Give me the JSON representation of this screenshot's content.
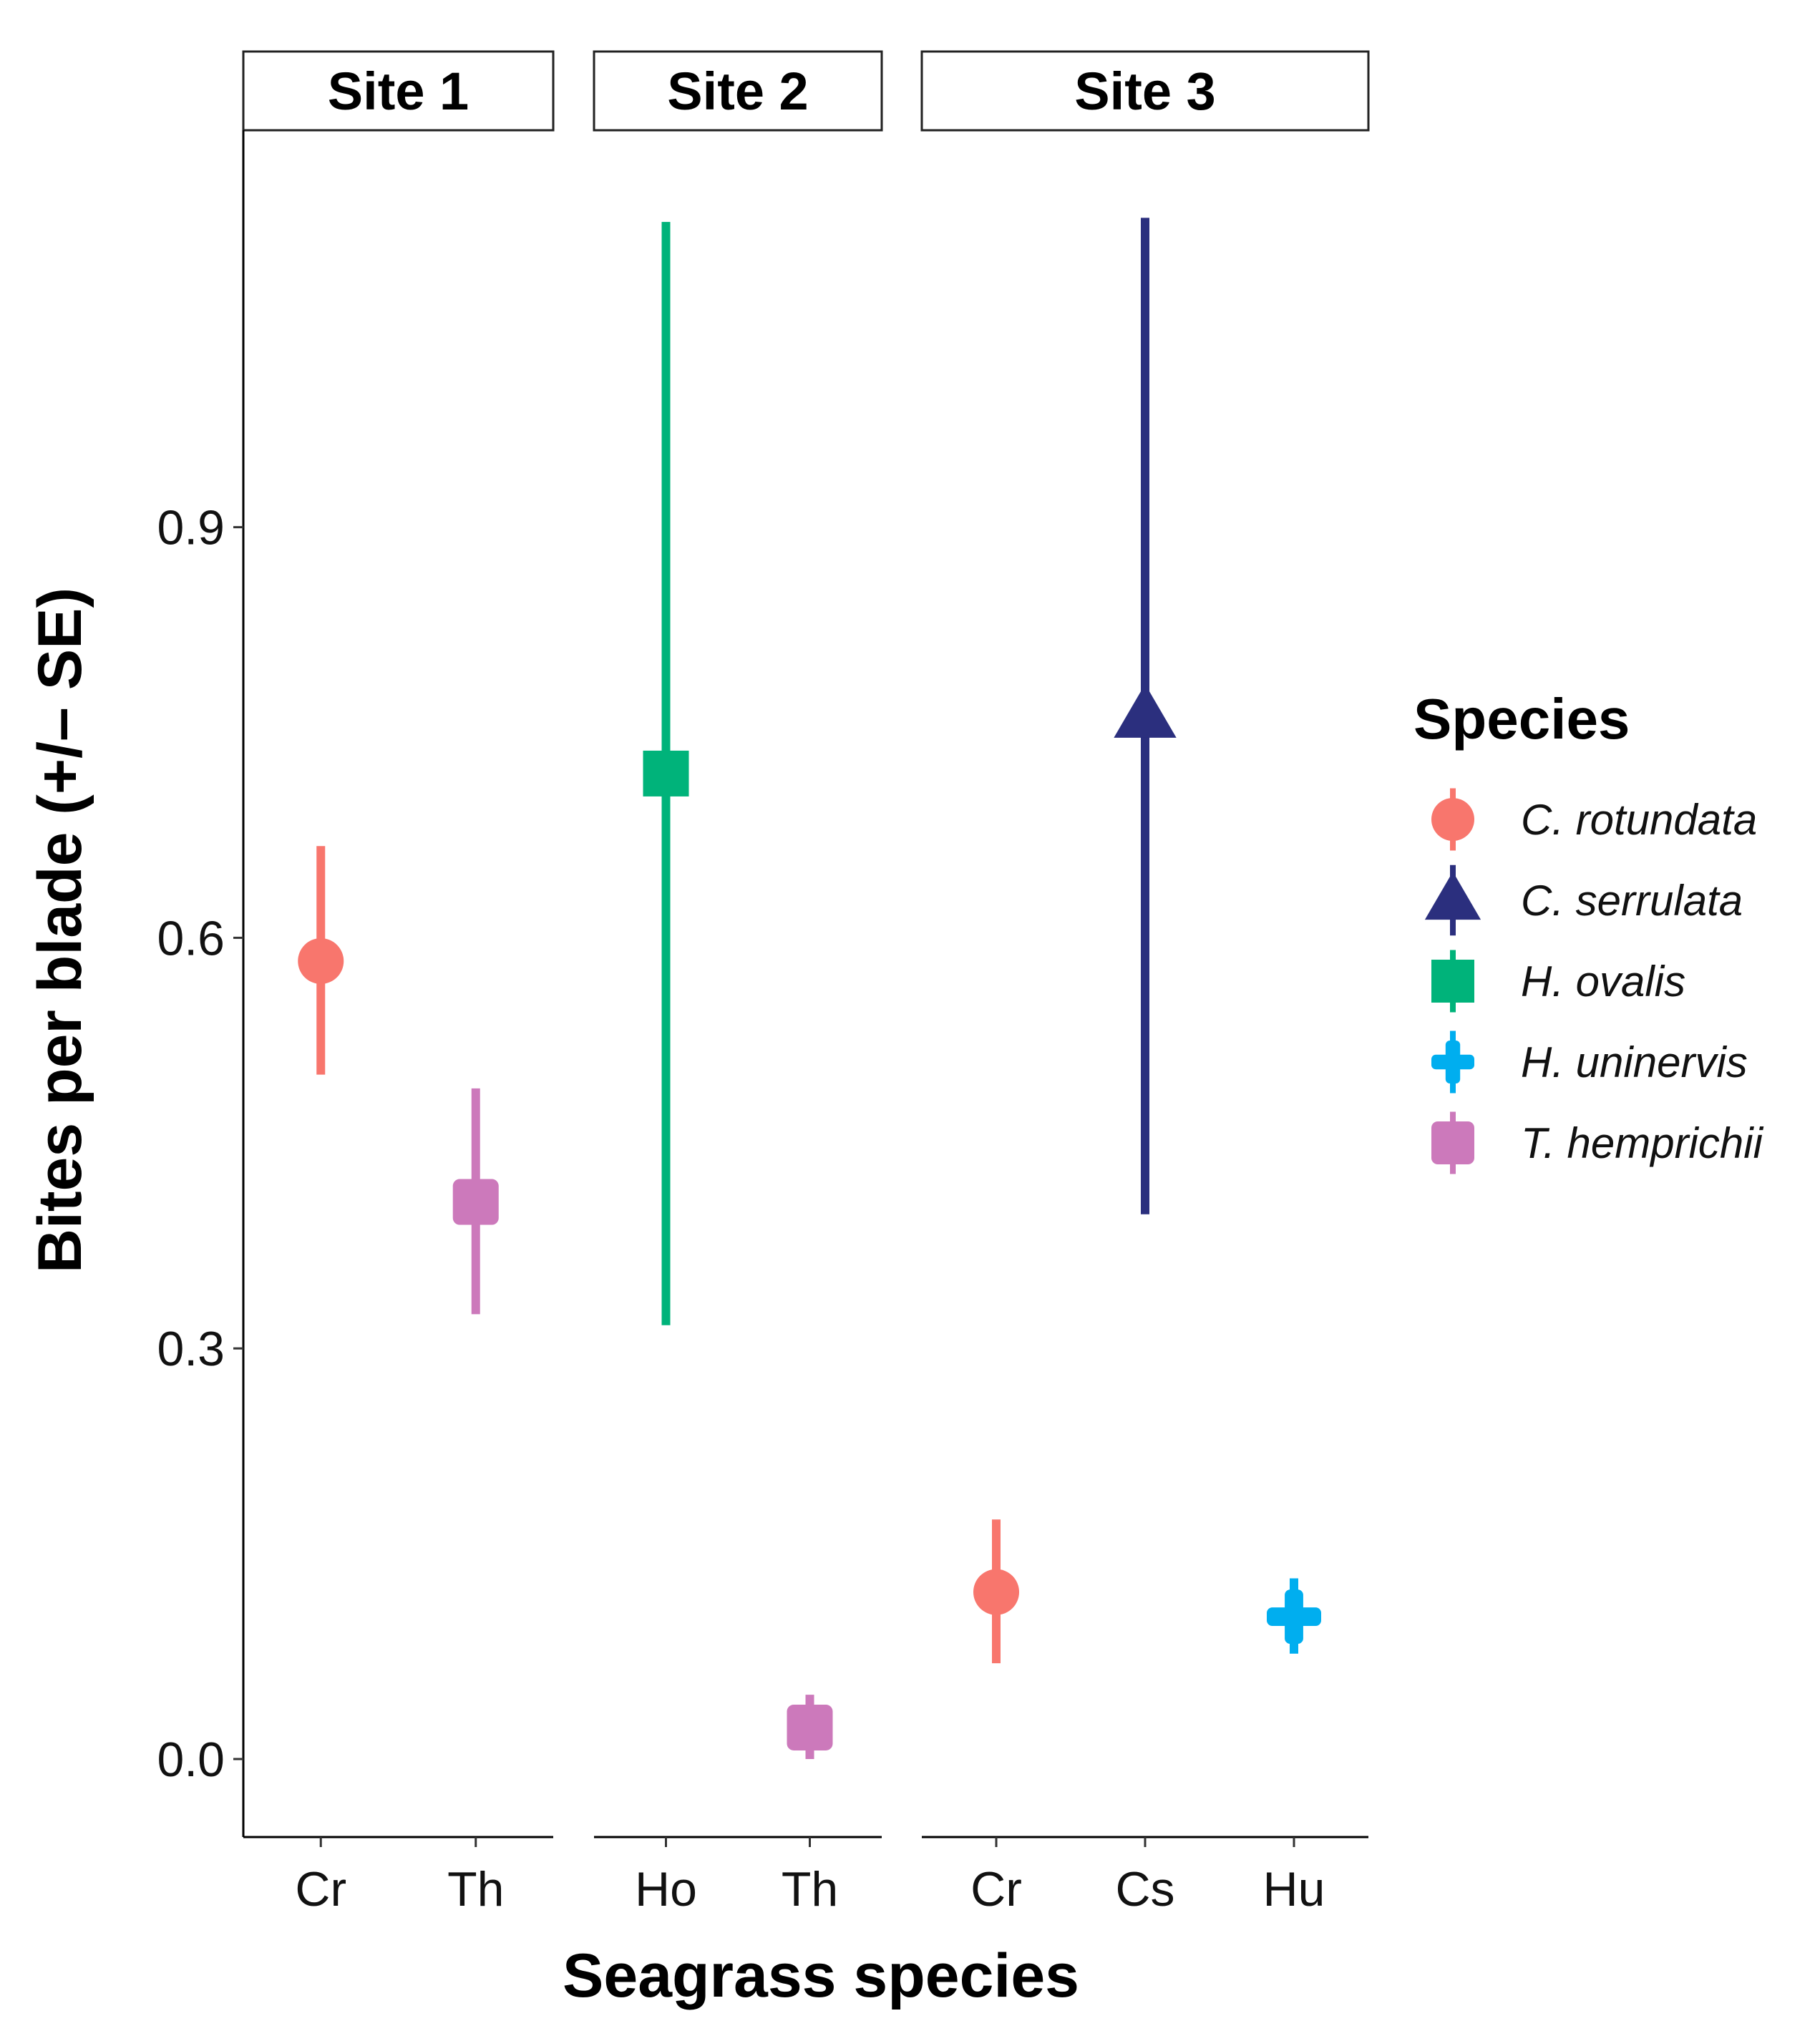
{
  "chart_data": {
    "type": "scatter",
    "subtype": "point-with-error-bars (faceted)",
    "xlabel": "Seagrass species",
    "ylabel": "Bites per blade (+/– SE)",
    "ylim": [
      -0.057,
      1.19
    ],
    "yticks": [
      0.0,
      0.3,
      0.6,
      0.9
    ],
    "ytick_labels": [
      "0.0",
      "0.3",
      "0.6",
      "0.9"
    ],
    "legend": {
      "title": "Species",
      "position": "right",
      "entries": [
        {
          "key": "Cr",
          "label": "C. rotundata",
          "color": "#F8766D",
          "shape": "circle"
        },
        {
          "key": "Cs",
          "label": "C. serrulata",
          "color": "#2B2F7E",
          "shape": "triangle"
        },
        {
          "key": "Ho",
          "label": "H. ovalis",
          "color": "#00B37A",
          "shape": "square"
        },
        {
          "key": "Hu",
          "label": "H. uninervis",
          "color": "#00AEEF",
          "shape": "plus"
        },
        {
          "key": "Th",
          "label": "T. hemprichii",
          "color": "#CC79BB",
          "shape": "rounded-square"
        }
      ]
    },
    "facets": [
      {
        "label": "Site 1",
        "categories": [
          "Cr",
          "Th"
        ],
        "points": [
          {
            "x": "Cr",
            "species": "Cr",
            "y": 0.583,
            "ymin": 0.5,
            "ymax": 0.667
          },
          {
            "x": "Th",
            "species": "Th",
            "y": 0.407,
            "ymin": 0.325,
            "ymax": 0.49
          }
        ]
      },
      {
        "label": "Site 2",
        "categories": [
          "Ho",
          "Th"
        ],
        "points": [
          {
            "x": "Ho",
            "species": "Ho",
            "y": 0.72,
            "ymin": 0.317,
            "ymax": 1.123
          },
          {
            "x": "Th",
            "species": "Th",
            "y": 0.023,
            "ymin": 0.0,
            "ymax": 0.047
          }
        ]
      },
      {
        "label": "Site 3",
        "categories": [
          "Cr",
          "Cs",
          "Hu"
        ],
        "points": [
          {
            "x": "Cr",
            "species": "Cr",
            "y": 0.122,
            "ymin": 0.07,
            "ymax": 0.175
          },
          {
            "x": "Cs",
            "species": "Cs",
            "y": 0.762,
            "ymin": 0.398,
            "ymax": 1.126
          },
          {
            "x": "Hu",
            "species": "Hu",
            "y": 0.104,
            "ymin": 0.077,
            "ymax": 0.132
          }
        ]
      }
    ]
  }
}
